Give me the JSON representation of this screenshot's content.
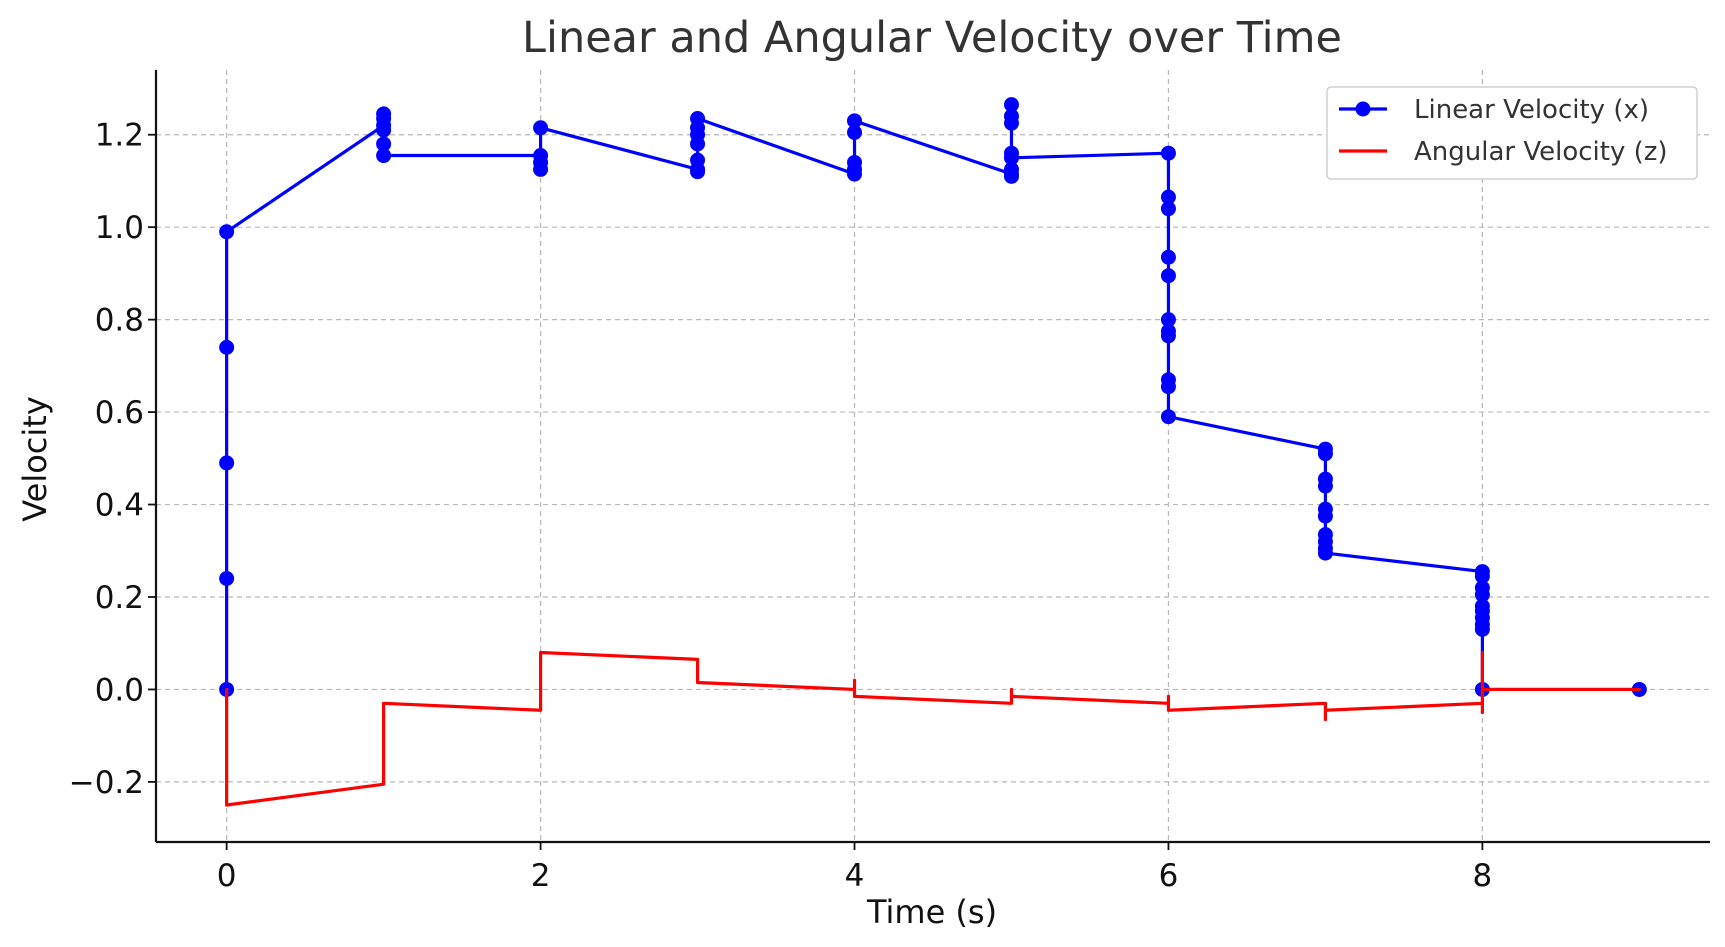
{
  "chart_data": {
    "type": "line",
    "title": "Linear and Angular Velocity over Time",
    "xlabel": "Time (s)",
    "ylabel": "Velocity",
    "xlim": [
      -0.45,
      9.45
    ],
    "ylim": [
      -0.33,
      1.34
    ],
    "xticks": [
      0,
      2,
      4,
      6,
      8
    ],
    "xtick_labels": [
      "0",
      "2",
      "4",
      "6",
      "8"
    ],
    "yticks": [
      -0.2,
      0.0,
      0.2,
      0.4,
      0.6,
      0.8,
      1.0,
      1.2
    ],
    "ytick_labels": [
      "−0.2",
      "0.0",
      "0.2",
      "0.4",
      "0.6",
      "0.8",
      "1.0",
      "1.2"
    ],
    "grid": true,
    "legend_position": "top-right",
    "series": [
      {
        "name": "Linear Velocity (x)",
        "color": "#0000ff",
        "marker": "circle",
        "points": [
          [
            0,
            0.0
          ],
          [
            0,
            0.24
          ],
          [
            0,
            0.49
          ],
          [
            0,
            0.74
          ],
          [
            0,
            0.99
          ],
          [
            1,
            1.22
          ],
          [
            1,
            1.245
          ],
          [
            1,
            1.235
          ],
          [
            1,
            1.21
          ],
          [
            1,
            1.18
          ],
          [
            1,
            1.155
          ],
          [
            2,
            1.155
          ],
          [
            2,
            1.14
          ],
          [
            2,
            1.125
          ],
          [
            2,
            1.215
          ],
          [
            3,
            1.125
          ],
          [
            3,
            1.12
          ],
          [
            3,
            1.145
          ],
          [
            3,
            1.18
          ],
          [
            3,
            1.2
          ],
          [
            3,
            1.215
          ],
          [
            3,
            1.235
          ],
          [
            4,
            1.115
          ],
          [
            4,
            1.125
          ],
          [
            4,
            1.14
          ],
          [
            4,
            1.205
          ],
          [
            4,
            1.23
          ],
          [
            5,
            1.115
          ],
          [
            5,
            1.11
          ],
          [
            5,
            1.125
          ],
          [
            5,
            1.16
          ],
          [
            5,
            1.225
          ],
          [
            5,
            1.24
          ],
          [
            5,
            1.265
          ],
          [
            5,
            1.15
          ],
          [
            6,
            1.16
          ],
          [
            6,
            1.065
          ],
          [
            6,
            1.04
          ],
          [
            6,
            0.935
          ],
          [
            6,
            0.895
          ],
          [
            6,
            0.8
          ],
          [
            6,
            0.775
          ],
          [
            6,
            0.765
          ],
          [
            6,
            0.67
          ],
          [
            6,
            0.655
          ],
          [
            6,
            0.59
          ],
          [
            7,
            0.52
          ],
          [
            7,
            0.51
          ],
          [
            7,
            0.455
          ],
          [
            7,
            0.44
          ],
          [
            7,
            0.39
          ],
          [
            7,
            0.375
          ],
          [
            7,
            0.335
          ],
          [
            7,
            0.32
          ],
          [
            7,
            0.305
          ],
          [
            7,
            0.295
          ],
          [
            8,
            0.255
          ],
          [
            8,
            0.245
          ],
          [
            8,
            0.22
          ],
          [
            8,
            0.205
          ],
          [
            8,
            0.18
          ],
          [
            8,
            0.17
          ],
          [
            8,
            0.155
          ],
          [
            8,
            0.14
          ],
          [
            8,
            0.13
          ],
          [
            8,
            0.0
          ],
          [
            9,
            0.0
          ]
        ]
      },
      {
        "name": "Angular Velocity (z)",
        "color": "#ff0000",
        "marker": "none",
        "points": [
          [
            0,
            0.0
          ],
          [
            0,
            -0.25
          ],
          [
            1,
            -0.205
          ],
          [
            1,
            -0.03
          ],
          [
            2,
            -0.045
          ],
          [
            2,
            0.08
          ],
          [
            3,
            0.065
          ],
          [
            3,
            0.015
          ],
          [
            4,
            0.0
          ],
          [
            4,
            0.02
          ],
          [
            4,
            -0.015
          ],
          [
            5,
            -0.03
          ],
          [
            5,
            0.0
          ],
          [
            5,
            -0.015
          ],
          [
            6,
            -0.03
          ],
          [
            6,
            -0.015
          ],
          [
            6,
            -0.045
          ],
          [
            7,
            -0.03
          ],
          [
            7,
            -0.065
          ],
          [
            7,
            -0.045
          ],
          [
            8,
            -0.03
          ],
          [
            8,
            -0.05
          ],
          [
            8,
            0.08
          ],
          [
            8,
            0.0
          ],
          [
            9,
            0.0
          ]
        ]
      }
    ]
  }
}
